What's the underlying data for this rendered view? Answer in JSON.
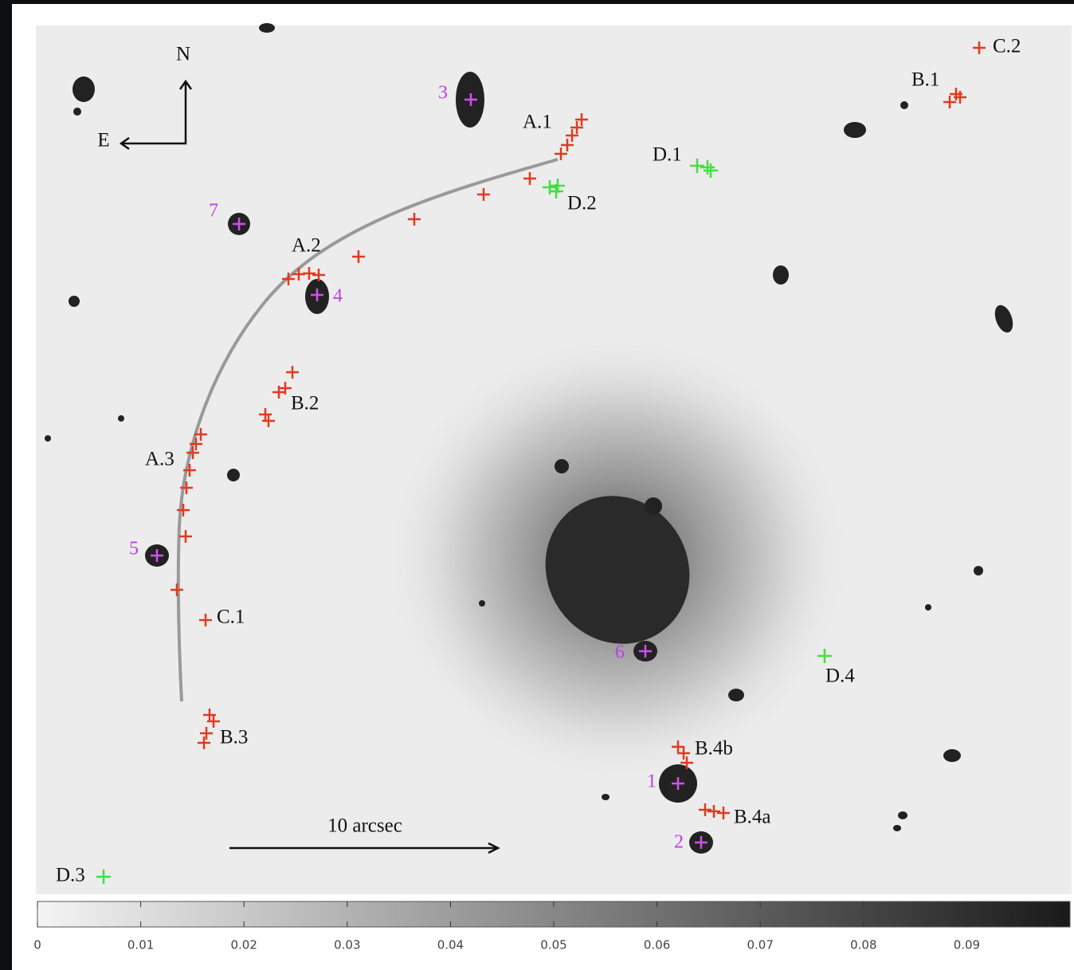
{
  "compass": {
    "north": "N",
    "east": "E"
  },
  "scale_bar": "10 arcsec",
  "image_labels": [
    "A.1",
    "A.2",
    "A.3",
    "B.1",
    "B.2",
    "B.3",
    "B.4a",
    "B.4b",
    "C.1",
    "C.2",
    "D.1",
    "D.2",
    "D.3",
    "D.4"
  ],
  "galaxy_labels": [
    "1",
    "2",
    "3",
    "4",
    "5",
    "6",
    "7"
  ],
  "colorbar": {
    "lim": [
      0,
      0.1
    ],
    "ticks": [
      0,
      0.01,
      0.02,
      0.03,
      0.04,
      0.05,
      0.06,
      0.07,
      0.08,
      0.09
    ]
  }
}
